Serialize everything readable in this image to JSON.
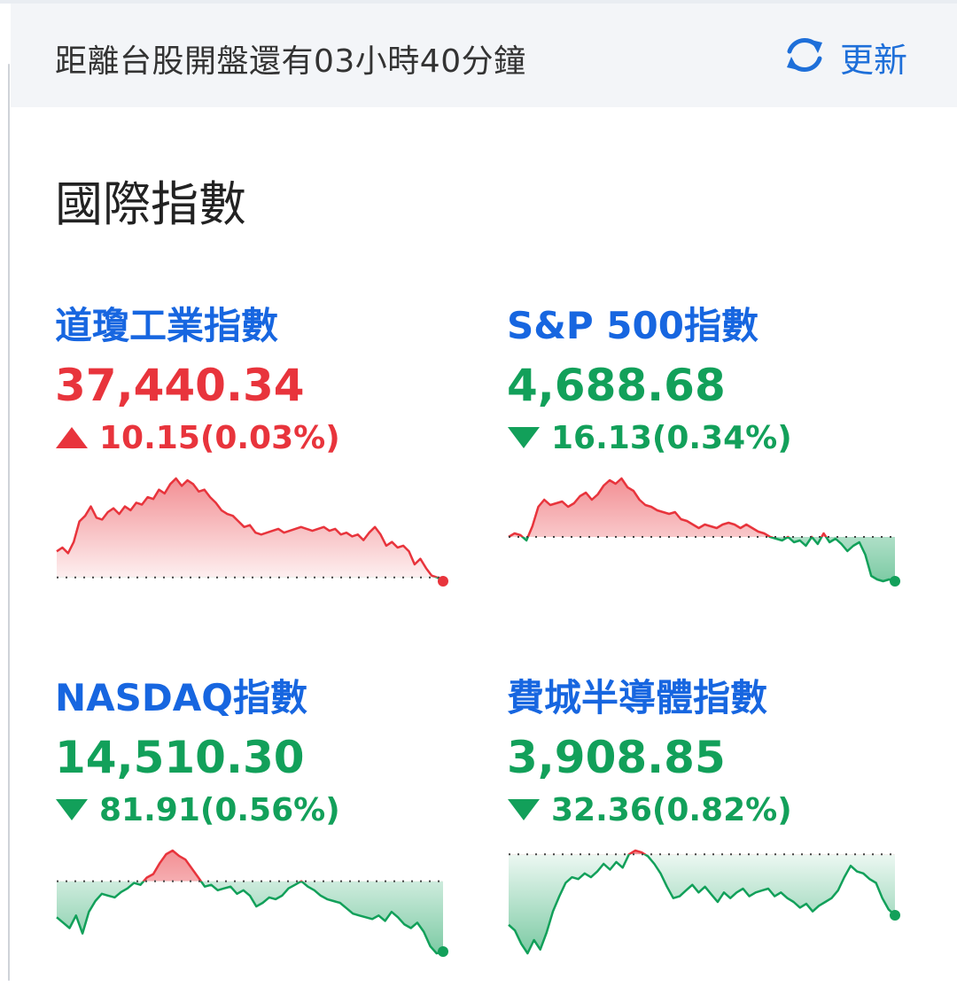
{
  "header": {
    "countdown": "距離台股開盤還有03小時40分鐘",
    "refresh_label": "更新",
    "refresh_icon": "refresh-icon"
  },
  "section": {
    "title": "國際指數"
  },
  "colors": {
    "up": "#e8343c",
    "down": "#12a05a",
    "link": "#1766e0"
  },
  "indices": [
    {
      "name": "道瓊工業指數",
      "value": "37,440.34",
      "change": "10.15(0.03%)",
      "direction": "up",
      "sparkline": [
        4,
        8,
        2,
        14,
        36,
        42,
        52,
        40,
        38,
        46,
        50,
        44,
        52,
        48,
        56,
        54,
        62,
        60,
        70,
        66,
        76,
        82,
        74,
        80,
        76,
        68,
        70,
        62,
        56,
        48,
        44,
        42,
        36,
        30,
        32,
        24,
        22,
        24,
        26,
        28,
        24,
        26,
        28,
        30,
        28,
        26,
        28,
        30,
        26,
        28,
        22,
        24,
        20,
        22,
        16,
        24,
        30,
        22,
        10,
        14,
        8,
        10,
        4,
        -10,
        -4,
        -14,
        -22,
        -24,
        -28
      ],
      "baseline": -24
    },
    {
      "name": "S&P 500指數",
      "value": "4,688.68",
      "change": "16.13(0.34%)",
      "direction": "down",
      "sparkline": [
        0,
        4,
        2,
        -4,
        12,
        34,
        42,
        36,
        38,
        40,
        34,
        38,
        46,
        50,
        42,
        48,
        58,
        64,
        60,
        66,
        56,
        52,
        42,
        36,
        34,
        30,
        28,
        26,
        28,
        20,
        18,
        14,
        10,
        14,
        12,
        10,
        14,
        16,
        14,
        10,
        14,
        10,
        6,
        4,
        0,
        -2,
        -4,
        0,
        -6,
        -4,
        -10,
        0,
        -8,
        4,
        -6,
        -2,
        -8,
        -16,
        -10,
        -6,
        -20,
        -44,
        -48,
        -50,
        -48,
        -50
      ],
      "baseline": 0
    },
    {
      "name": "NASDAQ指數",
      "value": "14,510.30",
      "change": "81.91(0.56%)",
      "direction": "down",
      "sparkline": [
        -40,
        -46,
        -52,
        -38,
        -58,
        -34,
        -22,
        -14,
        -16,
        -18,
        -12,
        -8,
        -2,
        -4,
        4,
        8,
        20,
        30,
        34,
        28,
        24,
        14,
        4,
        -6,
        -4,
        -10,
        -8,
        -6,
        -14,
        -10,
        -16,
        -28,
        -24,
        -18,
        -20,
        -16,
        -8,
        -4,
        0,
        -6,
        -10,
        -16,
        -20,
        -22,
        -24,
        -30,
        -36,
        -38,
        -40,
        -42,
        -38,
        -44,
        -34,
        -40,
        -48,
        -52,
        -46,
        -56,
        -72,
        -80,
        -78
      ],
      "baseline": 0
    },
    {
      "name": "費城半導體指數",
      "value": "3,908.85",
      "change": "32.36(0.82%)",
      "direction": "down",
      "sparkline": [
        -74,
        -80,
        -94,
        -104,
        -90,
        -100,
        -82,
        -60,
        -44,
        -30,
        -24,
        -26,
        -20,
        -24,
        -18,
        -10,
        -16,
        -8,
        -14,
        0,
        4,
        2,
        -2,
        -10,
        -20,
        -34,
        -46,
        -44,
        -38,
        -32,
        -40,
        -34,
        -42,
        -50,
        -40,
        -46,
        -40,
        -36,
        -44,
        -40,
        -38,
        -36,
        -44,
        -40,
        -46,
        -50,
        -56,
        -52,
        -60,
        -54,
        -50,
        -46,
        -38,
        -24,
        -12,
        -18,
        -20,
        -26,
        -30,
        -46,
        -58,
        -64
      ],
      "baseline": 0
    }
  ]
}
